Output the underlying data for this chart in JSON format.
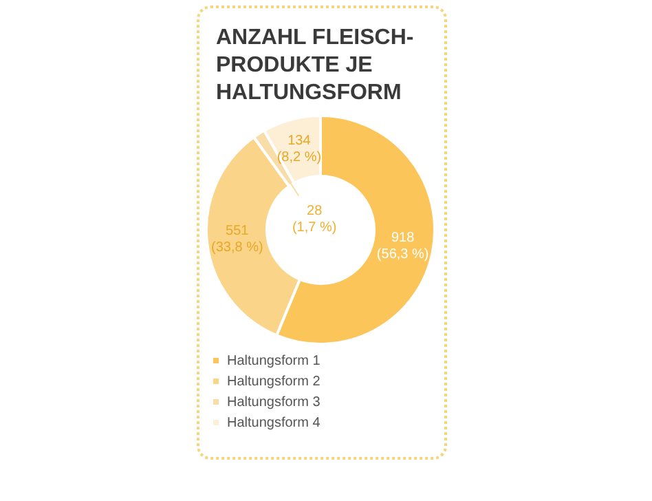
{
  "chart_data": {
    "type": "donut",
    "title": "ANZAHL FLEISCH-PRODUKTE JE HALTUNGSFORM",
    "categories": [
      "Haltungsform 1",
      "Haltungsform 2",
      "Haltungsform 3",
      "Haltungsform 4"
    ],
    "values": [
      918,
      551,
      28,
      134
    ],
    "value_labels": [
      "918 (56,3 %)",
      "551 (33,8 %)",
      "28 (1,7 %)",
      "134 (8,2 %)"
    ],
    "colors": [
      "#fcc55a",
      "#f9d489",
      "#f8dda8",
      "#fcefd6"
    ],
    "legend": "bottom"
  }
}
